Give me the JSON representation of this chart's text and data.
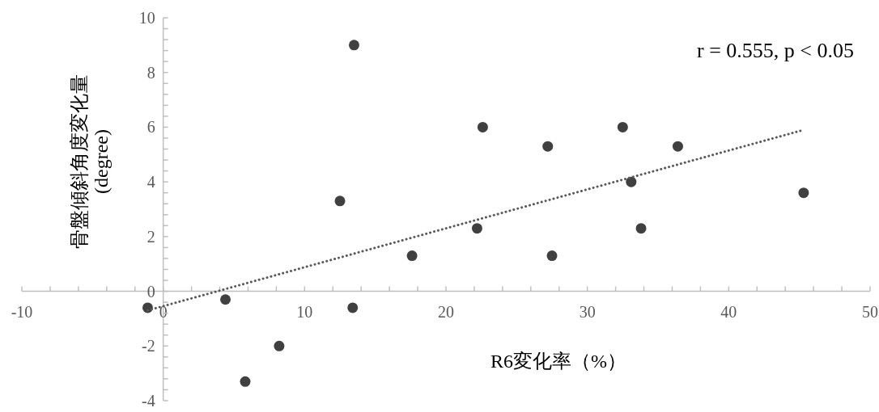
{
  "chart_data": {
    "type": "scatter",
    "xlabel": "R6変化率（%）",
    "ylabel": "骨盤傾斜角度変化量\n(degree)",
    "annotations": [
      "r = 0.555, p < 0.05"
    ],
    "xlim": [
      -10,
      50
    ],
    "ylim": [
      -4,
      10
    ],
    "xticks": [
      -10,
      {
        "value": -8,
        "label": null
      },
      {
        "value": -6,
        "label": null
      },
      {
        "value": -4,
        "label": null
      },
      {
        "value": -2,
        "label": null
      },
      0,
      {
        "value": 2,
        "label": null
      },
      {
        "value": 4,
        "label": null
      },
      {
        "value": 6,
        "label": null
      },
      {
        "value": 8,
        "label": null
      },
      10,
      {
        "value": 12,
        "label": null
      },
      {
        "value": 14,
        "label": null
      },
      {
        "value": 16,
        "label": null
      },
      {
        "value": 18,
        "label": null
      },
      20,
      {
        "value": 22,
        "label": null
      },
      {
        "value": 24,
        "label": null
      },
      {
        "value": 26,
        "label": null
      },
      {
        "value": 28,
        "label": null
      },
      30,
      {
        "value": 32,
        "label": null
      },
      {
        "value": 34,
        "label": null
      },
      {
        "value": 36,
        "label": null
      },
      {
        "value": 38,
        "label": null
      },
      40,
      {
        "value": 42,
        "label": null
      },
      {
        "value": 44,
        "label": null
      },
      {
        "value": 46,
        "label": null
      },
      {
        "value": 48,
        "label": null
      },
      50
    ],
    "yticks": [
      -4,
      {
        "value": -3.6,
        "label": null
      },
      {
        "value": -3.2,
        "label": null
      },
      {
        "value": -2.8,
        "label": null
      },
      {
        "value": -2.4,
        "label": null
      },
      -2,
      {
        "value": -1.6,
        "label": null
      },
      {
        "value": -1.2,
        "label": null
      },
      {
        "value": -0.8,
        "label": null
      },
      {
        "value": -0.4,
        "label": null
      },
      0,
      {
        "value": 0.4,
        "label": null
      },
      {
        "value": 0.8,
        "label": null
      },
      {
        "value": 1.2,
        "label": null
      },
      {
        "value": 1.6,
        "label": null
      },
      2,
      {
        "value": 2.4,
        "label": null
      },
      {
        "value": 2.8,
        "label": null
      },
      {
        "value": 3.2,
        "label": null
      },
      {
        "value": 3.6,
        "label": null
      },
      4,
      {
        "value": 4.4,
        "label": null
      },
      {
        "value": 4.8,
        "label": null
      },
      {
        "value": 5.2,
        "label": null
      },
      {
        "value": 5.6,
        "label": null
      },
      6,
      {
        "value": 6.4,
        "label": null
      },
      {
        "value": 6.8,
        "label": null
      },
      {
        "value": 7.2,
        "label": null
      },
      {
        "value": 7.6,
        "label": null
      },
      8,
      {
        "value": 8.4,
        "label": null
      },
      {
        "value": 8.8,
        "label": null
      },
      {
        "value": 9.2,
        "label": null
      },
      {
        "value": 9.6,
        "label": null
      },
      10
    ],
    "grid": false,
    "marker": "circle",
    "series": [
      {
        "color": "#404040",
        "x": [
          -1.1,
          4.4,
          5.8,
          8.2,
          13.4,
          12.5,
          13.5,
          17.6,
          22.2,
          22.6,
          27.2,
          27.5,
          32.5,
          33.1,
          33.8,
          36.4,
          45.3
        ],
        "values": [
          -0.6,
          -0.3,
          -3.3,
          -2.0,
          -0.6,
          3.3,
          9.0,
          1.3,
          2.3,
          6.0,
          5.3,
          1.3,
          6.0,
          4.0,
          2.3,
          5.3,
          3.6
        ]
      },
      {
        "type": "line",
        "color": "#595959",
        "line_style": "dotted",
        "marker": "none",
        "x": [
          -1.1,
          45.3
        ],
        "values": [
          -0.7,
          5.9
        ]
      }
    ]
  }
}
